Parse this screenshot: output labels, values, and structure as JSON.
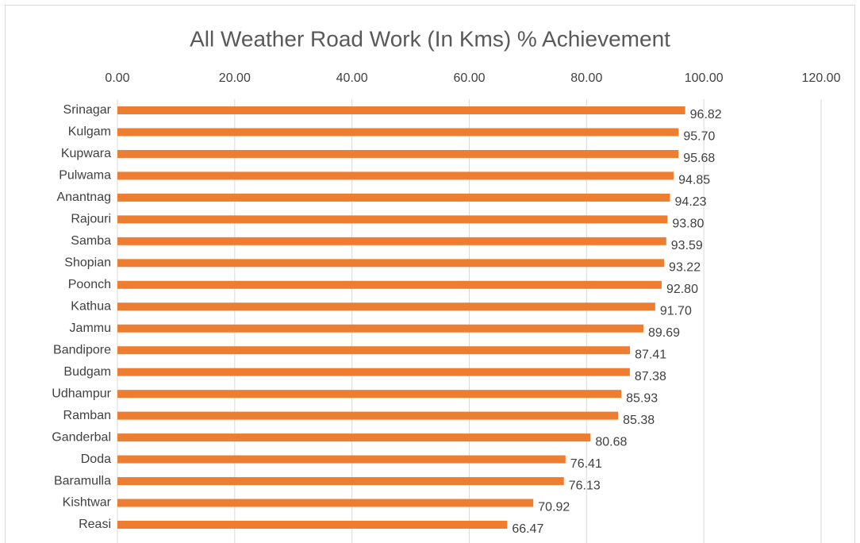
{
  "chart_data": {
    "type": "bar",
    "orientation": "horizontal",
    "title": "All Weather Road Work (In Kms) % Achievement",
    "categories": [
      "Srinagar",
      "Kulgam",
      "Kupwara",
      "Pulwama",
      "Anantnag",
      "Rajouri",
      "Samba",
      "Shopian",
      "Poonch",
      "Kathua",
      "Jammu",
      "Bandipore",
      "Budgam",
      "Udhampur",
      "Ramban",
      "Ganderbal",
      "Doda",
      "Baramulla",
      "Kishtwar",
      "Reasi"
    ],
    "values": [
      96.82,
      95.7,
      95.68,
      94.85,
      94.23,
      93.8,
      93.59,
      93.22,
      92.8,
      91.7,
      89.69,
      87.41,
      87.38,
      85.93,
      85.38,
      80.68,
      76.41,
      76.13,
      70.92,
      66.47
    ],
    "value_labels": [
      "96.82",
      "95.70",
      "95.68",
      "94.85",
      "94.23",
      "93.80",
      "93.59",
      "93.22",
      "92.80",
      "91.70",
      "89.69",
      "87.41",
      "87.38",
      "85.93",
      "85.38",
      "80.68",
      "76.41",
      "76.13",
      "70.92",
      "66.47"
    ],
    "color": "#ed7d31",
    "xlim": [
      0,
      120
    ],
    "xticks": [
      {
        "value": 0,
        "label": "0.00"
      },
      {
        "value": 20,
        "label": "20.00"
      },
      {
        "value": 40,
        "label": "40.00"
      },
      {
        "value": 60,
        "label": "60.00"
      },
      {
        "value": 80,
        "label": "80.00"
      },
      {
        "value": 100,
        "label": "100.00"
      },
      {
        "value": 120,
        "label": "120.00"
      }
    ],
    "grid": true
  }
}
